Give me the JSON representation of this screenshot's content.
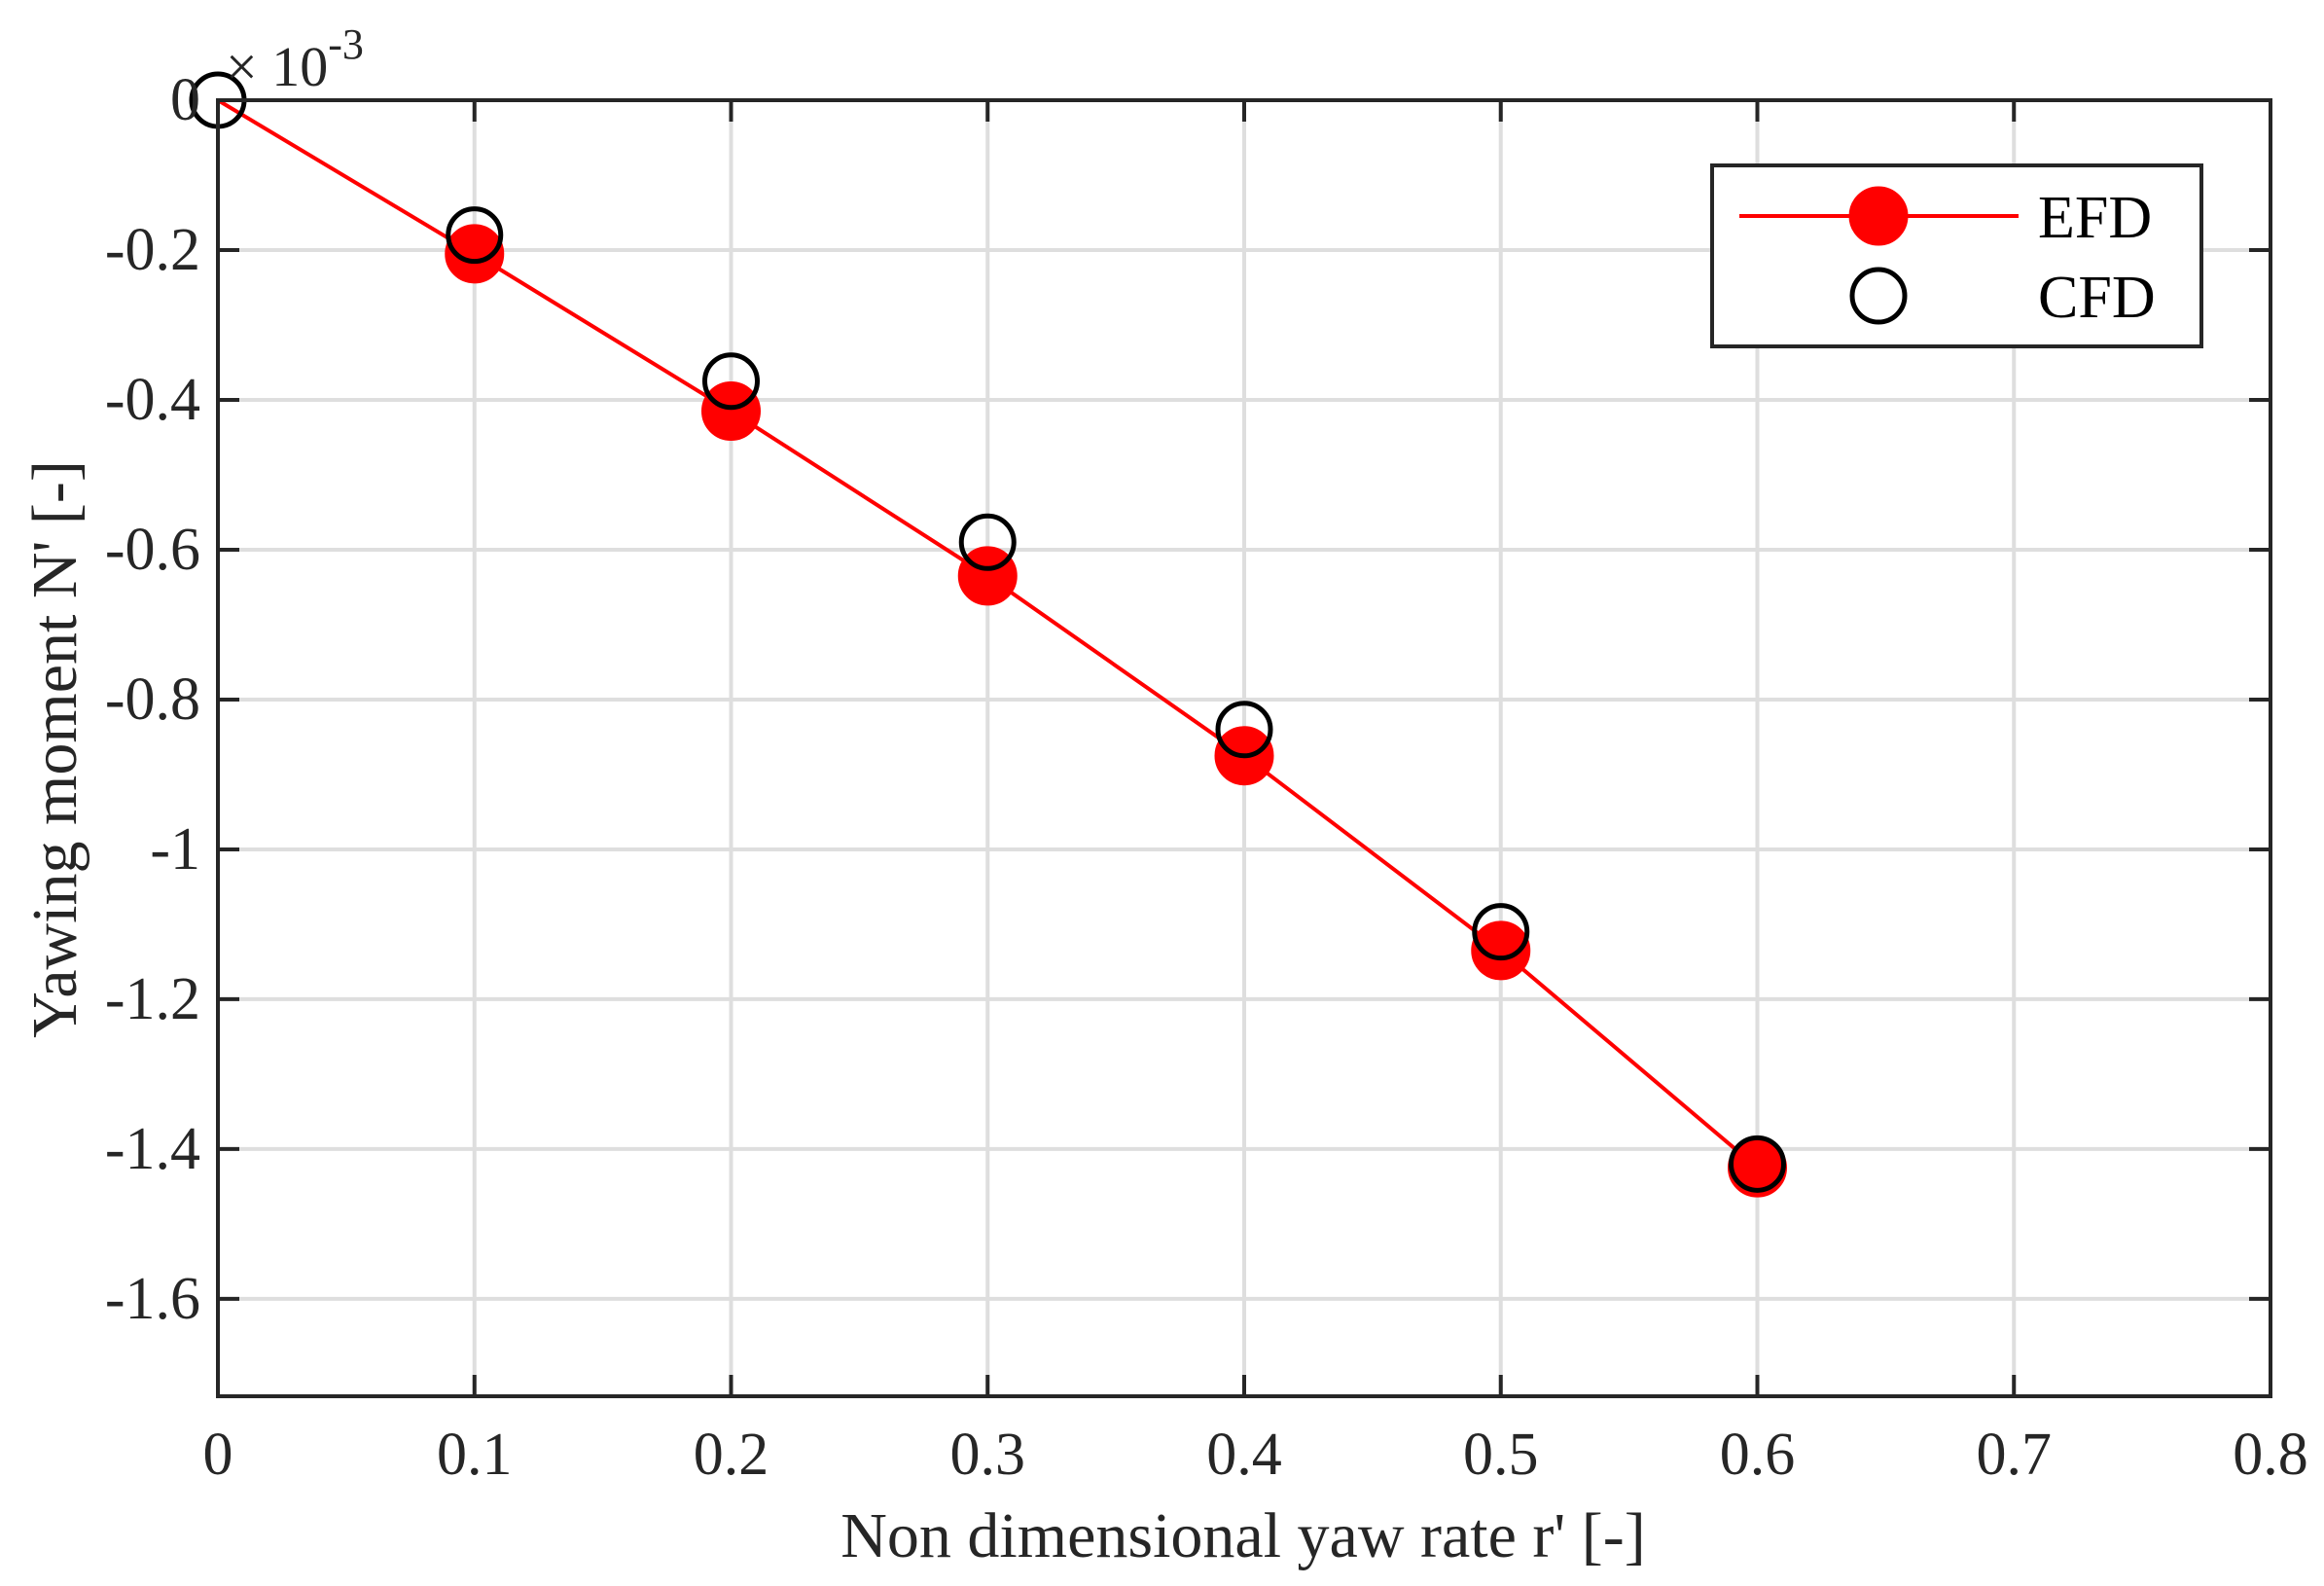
{
  "chart_data": {
    "type": "line",
    "xlabel": "Non dimensional yaw rate r' [-]",
    "ylabel": "Yawing moment N' [-]",
    "xlim": [
      0,
      0.8
    ],
    "ylim": [
      -1.73,
      0
    ],
    "y_exponent_base": "× 10",
    "y_exponent_power": "-3",
    "grid": true,
    "legend_position": "top-right",
    "x_ticks": [
      {
        "value": 0,
        "label": "0"
      },
      {
        "value": 0.1,
        "label": "0.1"
      },
      {
        "value": 0.2,
        "label": "0.2"
      },
      {
        "value": 0.3,
        "label": "0.3"
      },
      {
        "value": 0.4,
        "label": "0.4"
      },
      {
        "value": 0.5,
        "label": "0.5"
      },
      {
        "value": 0.6,
        "label": "0.6"
      },
      {
        "value": 0.7,
        "label": "0.7"
      },
      {
        "value": 0.8,
        "label": "0.8"
      }
    ],
    "y_ticks": [
      {
        "value": 0,
        "label": "0"
      },
      {
        "value": -0.2,
        "label": "-0.2"
      },
      {
        "value": -0.4,
        "label": "-0.4"
      },
      {
        "value": -0.6,
        "label": "-0.6"
      },
      {
        "value": -0.8,
        "label": "-0.8"
      },
      {
        "value": -1.0,
        "label": "-1"
      },
      {
        "value": -1.2,
        "label": "-1.2"
      },
      {
        "value": -1.4,
        "label": "-1.4"
      },
      {
        "value": -1.6,
        "label": "-1.6"
      }
    ],
    "series": [
      {
        "name": "EFD",
        "style": "line-filled-marker",
        "color": "#ff0000",
        "x": [
          0.1,
          0.2,
          0.3,
          0.4,
          0.5,
          0.6
        ],
        "y": [
          -0.205,
          -0.415,
          -0.635,
          -0.875,
          -1.135,
          -1.425
        ]
      },
      {
        "name": "CFD",
        "style": "open-marker",
        "color": "#000000",
        "x": [
          0,
          0.1,
          0.2,
          0.3,
          0.4,
          0.5,
          0.6
        ],
        "y": [
          0,
          -0.18,
          -0.375,
          -0.59,
          -0.84,
          -1.11,
          -1.42
        ]
      }
    ]
  }
}
